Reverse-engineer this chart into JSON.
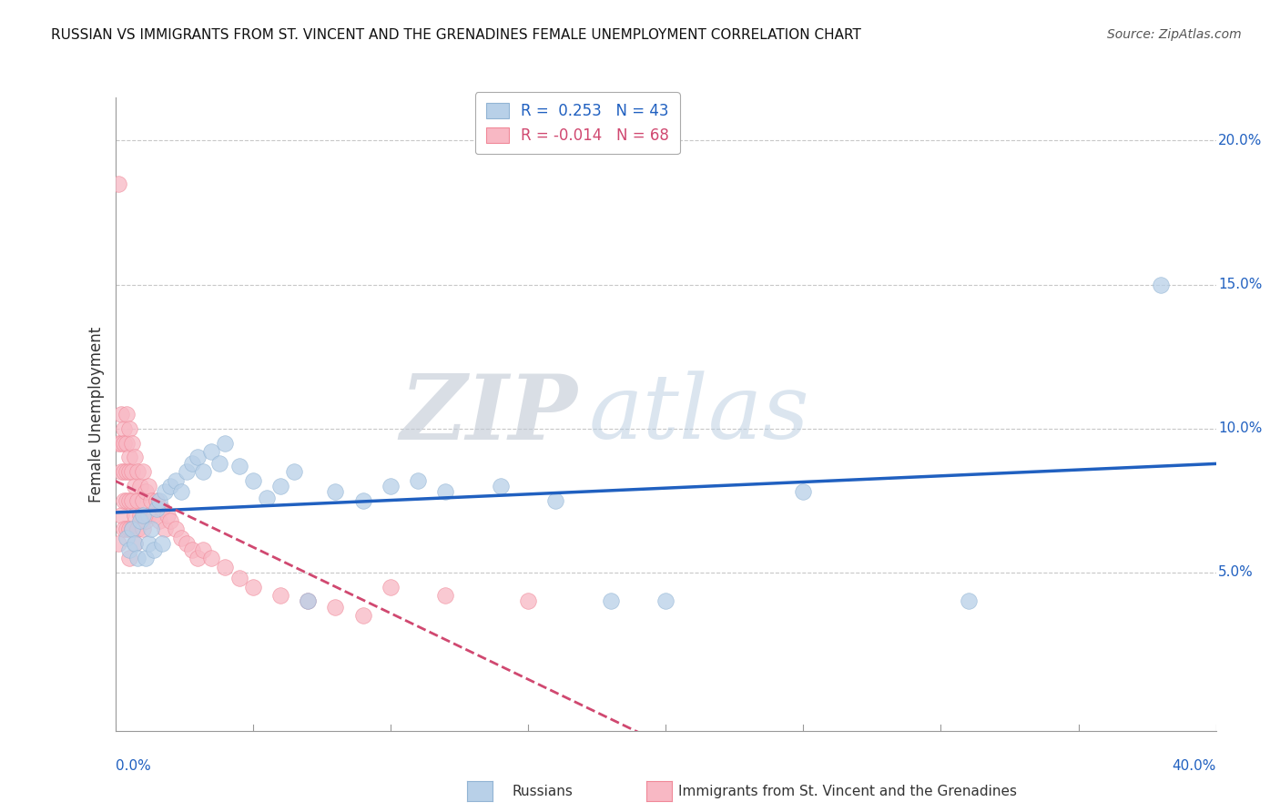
{
  "title": "RUSSIAN VS IMMIGRANTS FROM ST. VINCENT AND THE GRENADINES FEMALE UNEMPLOYMENT CORRELATION CHART",
  "source": "Source: ZipAtlas.com",
  "ylabel": "Female Unemployment",
  "xlim": [
    0.0,
    0.4
  ],
  "ylim": [
    -0.005,
    0.215
  ],
  "yticks": [
    0.05,
    0.1,
    0.15,
    0.2
  ],
  "ytick_labels": [
    "5.0%",
    "10.0%",
    "15.0%",
    "20.0%"
  ],
  "xtick_labels": [
    "0.0%",
    "40.0%"
  ],
  "legend_R1": "R =  0.253",
  "legend_N1": "N = 43",
  "legend_R2": "R = -0.014",
  "legend_N2": "N = 68",
  "color_russian": "#92b4d4",
  "color_svc": "#f08898",
  "color_russian_fill": "#b8d0e8",
  "color_svc_fill": "#f8b8c4",
  "color_russian_line": "#2060c0",
  "color_svc_line": "#d04870",
  "color_grid": "#c8c8c8",
  "watermark_zip": "ZIP",
  "watermark_atlas": "atlas",
  "background_color": "#ffffff",
  "russians_x": [
    0.004,
    0.005,
    0.006,
    0.007,
    0.008,
    0.009,
    0.01,
    0.011,
    0.012,
    0.013,
    0.014,
    0.015,
    0.016,
    0.017,
    0.018,
    0.02,
    0.022,
    0.024,
    0.026,
    0.028,
    0.03,
    0.032,
    0.035,
    0.038,
    0.04,
    0.045,
    0.05,
    0.055,
    0.06,
    0.065,
    0.07,
    0.08,
    0.09,
    0.1,
    0.11,
    0.12,
    0.14,
    0.16,
    0.18,
    0.2,
    0.25,
    0.31,
    0.38
  ],
  "russians_y": [
    0.062,
    0.058,
    0.065,
    0.06,
    0.055,
    0.068,
    0.07,
    0.055,
    0.06,
    0.065,
    0.058,
    0.072,
    0.075,
    0.06,
    0.078,
    0.08,
    0.082,
    0.078,
    0.085,
    0.088,
    0.09,
    0.085,
    0.092,
    0.088,
    0.095,
    0.087,
    0.082,
    0.076,
    0.08,
    0.085,
    0.04,
    0.078,
    0.075,
    0.08,
    0.082,
    0.078,
    0.08,
    0.075,
    0.04,
    0.04,
    0.078,
    0.04,
    0.15
  ],
  "svc_x": [
    0.001,
    0.001,
    0.001,
    0.002,
    0.002,
    0.002,
    0.002,
    0.003,
    0.003,
    0.003,
    0.003,
    0.003,
    0.004,
    0.004,
    0.004,
    0.004,
    0.004,
    0.005,
    0.005,
    0.005,
    0.005,
    0.005,
    0.005,
    0.006,
    0.006,
    0.006,
    0.006,
    0.007,
    0.007,
    0.007,
    0.007,
    0.008,
    0.008,
    0.008,
    0.009,
    0.009,
    0.01,
    0.01,
    0.01,
    0.011,
    0.011,
    0.012,
    0.012,
    0.013,
    0.014,
    0.015,
    0.016,
    0.017,
    0.018,
    0.019,
    0.02,
    0.022,
    0.024,
    0.026,
    0.028,
    0.03,
    0.032,
    0.035,
    0.04,
    0.045,
    0.05,
    0.06,
    0.07,
    0.08,
    0.09,
    0.1,
    0.12,
    0.15
  ],
  "svc_y": [
    0.185,
    0.095,
    0.06,
    0.105,
    0.095,
    0.085,
    0.07,
    0.1,
    0.095,
    0.085,
    0.075,
    0.065,
    0.105,
    0.095,
    0.085,
    0.075,
    0.065,
    0.1,
    0.09,
    0.085,
    0.075,
    0.065,
    0.055,
    0.095,
    0.085,
    0.075,
    0.065,
    0.09,
    0.08,
    0.07,
    0.06,
    0.085,
    0.075,
    0.065,
    0.08,
    0.07,
    0.085,
    0.075,
    0.065,
    0.078,
    0.068,
    0.08,
    0.07,
    0.075,
    0.07,
    0.075,
    0.068,
    0.072,
    0.065,
    0.07,
    0.068,
    0.065,
    0.062,
    0.06,
    0.058,
    0.055,
    0.058,
    0.055,
    0.052,
    0.048,
    0.045,
    0.042,
    0.04,
    0.038,
    0.035,
    0.045,
    0.042,
    0.04
  ]
}
